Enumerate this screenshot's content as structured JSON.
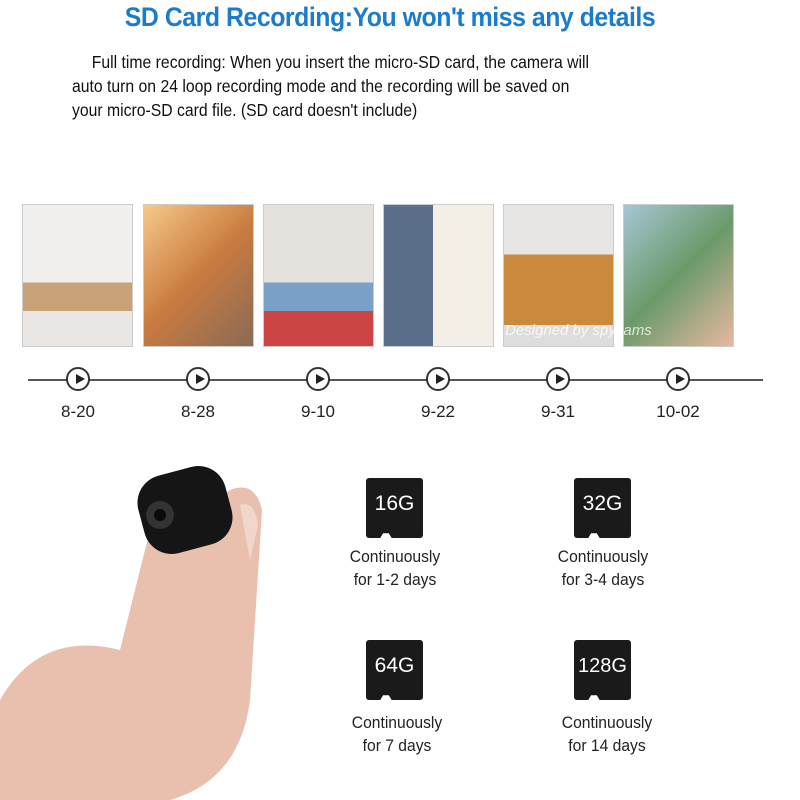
{
  "title": "SD Card Recording:You won't miss any details",
  "description": [
    "Full time recording: When you insert the micro-SD card, the camera will",
    "auto turn on 24 loop recording mode and the recording will be saved on",
    "your micro-SD card file. (SD card doesn't include)"
  ],
  "timeline": {
    "dates": [
      "8-20",
      "8-28",
      "9-10",
      "9-22",
      "9-31",
      "10-02"
    ],
    "watermark": "Designed by spycams"
  },
  "cards": [
    {
      "capacity": "16G",
      "line1": "Continuously",
      "line2": "for 1-2 days"
    },
    {
      "capacity": "32G",
      "line1": "Continuously",
      "line2": "for 3-4 days"
    },
    {
      "capacity": "64G",
      "line1": "Continuously",
      "line2": "for 7 days"
    },
    {
      "capacity": "128G",
      "line1": "Continuously",
      "line2": "for 14 days"
    }
  ],
  "colors": {
    "title": "#1b7ccb",
    "card": "#1a1a1a"
  }
}
